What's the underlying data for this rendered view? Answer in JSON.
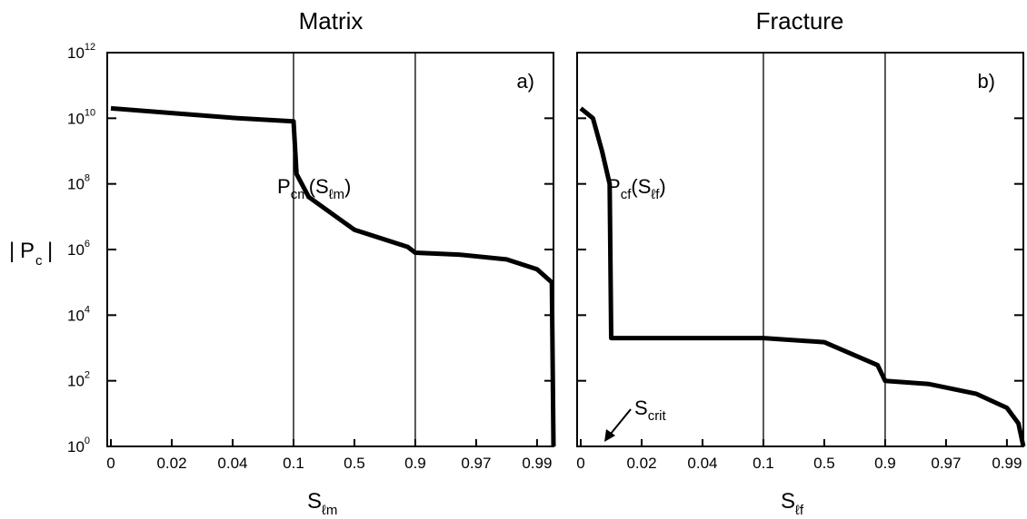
{
  "figure": {
    "ylabel": {
      "abs_left": "|",
      "main": "P",
      "sub": "c",
      "abs_right": "|"
    },
    "y_ticks": [
      {
        "base": "10",
        "exp": "0"
      },
      {
        "base": "10",
        "exp": "2"
      },
      {
        "base": "10",
        "exp": "4"
      },
      {
        "base": "10",
        "exp": "6"
      },
      {
        "base": "10",
        "exp": "8"
      },
      {
        "base": "10",
        "exp": "10"
      },
      {
        "base": "10",
        "exp": "12"
      }
    ]
  },
  "chart_data": [
    {
      "type": "line",
      "title": "Matrix",
      "panel_label": "a)",
      "xlabel": {
        "main": "S",
        "sub": "ℓm"
      },
      "y_scale": "log",
      "ylim": [
        1,
        1000000000000.0
      ],
      "x_tick_labels": [
        "0",
        "0.02",
        "0.04",
        "0.1",
        "0.5",
        "0.9",
        "0.97",
        "0.99"
      ],
      "x_decade_boundaries": [
        "0.1",
        "0.9"
      ],
      "curve_label": {
        "main": "P",
        "sub": "cm",
        "open": "(",
        "arg_main": "S",
        "arg_sub": "ℓm",
        "close": ")"
      },
      "series": [
        {
          "x": [
            "0",
            "0.045",
            "0.1",
            "0.12",
            "0.2",
            "0.5",
            "0.85",
            "0.9",
            "0.95",
            "0.98",
            "0.99",
            "0.999",
            "1.0"
          ],
          "y": [
            20000000000.0,
            10000000000.0,
            8000000000.0,
            200000000.0,
            40000000.0,
            4000000.0,
            1200000.0,
            800000.0,
            700000.0,
            500000.0,
            250000.0,
            100000.0,
            1
          ]
        }
      ]
    },
    {
      "type": "line",
      "title": "Fracture",
      "panel_label": "b)",
      "xlabel": {
        "main": "S",
        "sub": "ℓf"
      },
      "y_scale": "log",
      "ylim": [
        1,
        1000000000000.0
      ],
      "x_tick_labels": [
        "0",
        "0.02",
        "0.04",
        "0.1",
        "0.5",
        "0.9",
        "0.97",
        "0.99"
      ],
      "x_decade_boundaries": [
        "0.1",
        "0.9"
      ],
      "curve_label": {
        "main": "P",
        "sub": "cf",
        "open": "(",
        "arg_main": "S",
        "arg_sub": "ℓf",
        "close": ")"
      },
      "annotation": {
        "main": "S",
        "sub": "crit"
      },
      "series": [
        {
          "x": [
            "0",
            "0.004",
            "0.007",
            "0.0095",
            "0.01",
            "0.1",
            "0.5",
            "0.85",
            "0.9",
            "0.95",
            "0.98",
            "0.99",
            "0.997",
            "1.0"
          ],
          "y": [
            20000000000.0,
            10000000000.0,
            1000000000.0,
            100000000.0,
            2000,
            2000,
            1500,
            300,
            100,
            80,
            40,
            15,
            5,
            1
          ]
        }
      ]
    }
  ]
}
